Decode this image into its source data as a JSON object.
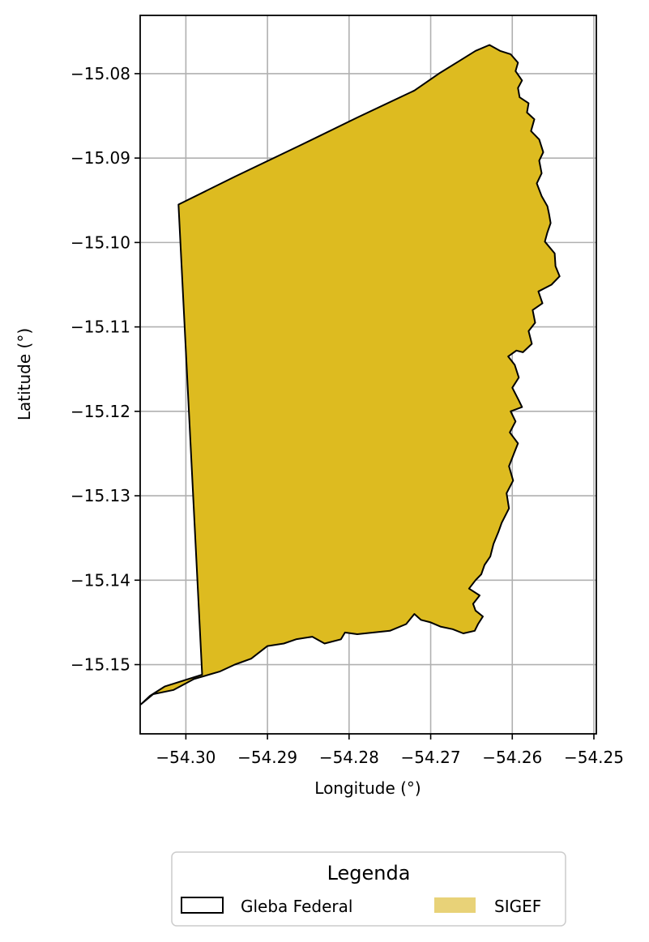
{
  "chart_data": {
    "type": "map",
    "xlabel": "Longitude (°)",
    "ylabel": "Latitude (°)",
    "xlim": [
      -54.3056,
      -54.2497
    ],
    "ylim": [
      -15.1582,
      -15.0731
    ],
    "xticks": [
      -54.3,
      -54.29,
      -54.28,
      -54.27,
      -54.26,
      -54.25
    ],
    "xtick_labels": [
      "−54.30",
      "−54.29",
      "−54.28",
      "−54.27",
      "−54.26",
      "−54.25"
    ],
    "yticks": [
      -15.08,
      -15.09,
      -15.1,
      -15.11,
      -15.12,
      -15.13,
      -15.14,
      -15.15
    ],
    "ytick_labels": [
      "−15.08",
      "−15.09",
      "−15.10",
      "−15.11",
      "−15.12",
      "−15.13",
      "−15.14",
      "−15.15"
    ],
    "grid": true,
    "fill_color": "#DDBB20",
    "legend": {
      "title": "Legenda",
      "placement": "bottom-center",
      "entries": [
        {
          "label": "Gleba Federal",
          "style": "outline",
          "color": "#000000"
        },
        {
          "label": "SIGEF",
          "style": "fill",
          "color": "#E8D278"
        }
      ]
    },
    "polygon": [
      [
        -54.3009,
        -15.0955
      ],
      [
        -54.294,
        -15.0922
      ],
      [
        -54.286,
        -15.0885
      ],
      [
        -54.279,
        -15.0852
      ],
      [
        -54.272,
        -15.082
      ],
      [
        -54.269,
        -15.08
      ],
      [
        -54.2665,
        -15.0785
      ],
      [
        -54.2645,
        -15.0773
      ],
      [
        -54.2628,
        -15.0766
      ],
      [
        -54.2615,
        -15.0773
      ],
      [
        -54.2602,
        -15.0777
      ],
      [
        -54.2593,
        -15.0787
      ],
      [
        -54.2596,
        -15.0797
      ],
      [
        -54.2588,
        -15.0808
      ],
      [
        -54.2593,
        -15.0817
      ],
      [
        -54.2591,
        -15.0828
      ],
      [
        -54.258,
        -15.0835
      ],
      [
        -54.2582,
        -15.0846
      ],
      [
        -54.2573,
        -15.0854
      ],
      [
        -54.2577,
        -15.0868
      ],
      [
        -54.2567,
        -15.0878
      ],
      [
        -54.2562,
        -15.0893
      ],
      [
        -54.2567,
        -15.0903
      ],
      [
        -54.2564,
        -15.0918
      ],
      [
        -54.257,
        -15.093
      ],
      [
        -54.2564,
        -15.0945
      ],
      [
        -54.2557,
        -15.0957
      ],
      [
        -54.2555,
        -15.0966
      ],
      [
        -54.2553,
        -15.0977
      ],
      [
        -54.2557,
        -15.0988
      ],
      [
        -54.256,
        -15.0999
      ],
      [
        -54.2548,
        -15.1013
      ],
      [
        -54.2547,
        -15.1028
      ],
      [
        -54.2542,
        -15.104
      ],
      [
        -54.2552,
        -15.105
      ],
      [
        -54.2568,
        -15.1058
      ],
      [
        -54.2563,
        -15.1072
      ],
      [
        -54.2575,
        -15.108
      ],
      [
        -54.2572,
        -15.1095
      ],
      [
        -54.258,
        -15.1105
      ],
      [
        -54.2576,
        -15.112
      ],
      [
        -54.2587,
        -15.113
      ],
      [
        -54.2595,
        -15.1128
      ],
      [
        -54.2605,
        -15.1135
      ],
      [
        -54.2597,
        -15.1145
      ],
      [
        -54.2592,
        -15.116
      ],
      [
        -54.26,
        -15.1172
      ],
      [
        -54.2592,
        -15.1187
      ],
      [
        -54.2588,
        -15.1195
      ],
      [
        -54.2602,
        -15.12
      ],
      [
        -54.2596,
        -15.1212
      ],
      [
        -54.2603,
        -15.1225
      ],
      [
        -54.2593,
        -15.1238
      ],
      [
        -54.2598,
        -15.125
      ],
      [
        -54.2604,
        -15.1265
      ],
      [
        -54.2599,
        -15.1282
      ],
      [
        -54.2607,
        -15.1297
      ],
      [
        -54.2604,
        -15.1315
      ],
      [
        -54.2613,
        -15.1332
      ],
      [
        -54.2617,
        -15.1343
      ],
      [
        -54.2623,
        -15.1357
      ],
      [
        -54.2627,
        -15.1372
      ],
      [
        -54.2634,
        -15.1382
      ],
      [
        -54.2638,
        -15.1393
      ],
      [
        -54.2645,
        -15.14
      ],
      [
        -54.2653,
        -15.141
      ],
      [
        -54.264,
        -15.1418
      ],
      [
        -54.2648,
        -15.1428
      ],
      [
        -54.2645,
        -15.1436
      ],
      [
        -54.2636,
        -15.1443
      ],
      [
        -54.2642,
        -15.1452
      ],
      [
        -54.2646,
        -15.146
      ],
      [
        -54.266,
        -15.1463
      ],
      [
        -54.2673,
        -15.1458
      ],
      [
        -54.2688,
        -15.1455
      ],
      [
        -54.27,
        -15.145
      ],
      [
        -54.2712,
        -15.1447
      ],
      [
        -54.272,
        -15.144
      ],
      [
        -54.273,
        -15.1452
      ],
      [
        -54.275,
        -15.146
      ],
      [
        -54.277,
        -15.1462
      ],
      [
        -54.279,
        -15.1464
      ],
      [
        -54.2805,
        -15.1462
      ],
      [
        -54.281,
        -15.147
      ],
      [
        -54.283,
        -15.1475
      ],
      [
        -54.2845,
        -15.1467
      ],
      [
        -54.2865,
        -15.147
      ],
      [
        -54.288,
        -15.1475
      ],
      [
        -54.29,
        -15.1478
      ],
      [
        -54.292,
        -15.1493
      ],
      [
        -54.294,
        -15.15
      ],
      [
        -54.2958,
        -15.1508
      ],
      [
        -54.299,
        -15.1517
      ],
      [
        -54.3015,
        -15.153
      ],
      [
        -54.304,
        -15.1535
      ],
      [
        -54.3055,
        -15.1547
      ],
      [
        -54.3044,
        -15.1537
      ],
      [
        -54.3026,
        -15.1526
      ],
      [
        -54.298,
        -15.1512
      ]
    ]
  }
}
